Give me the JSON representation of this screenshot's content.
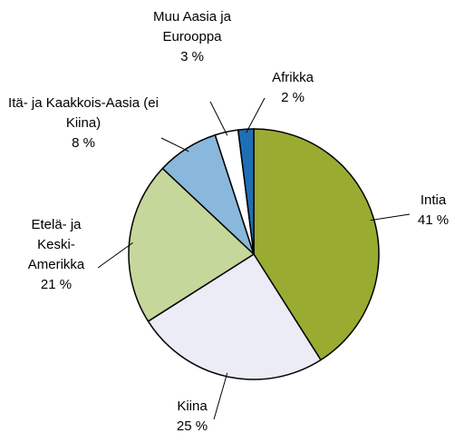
{
  "chart_data": {
    "type": "pie",
    "categories": [
      "Intia",
      "Kiina",
      "Etelä- ja Keski-Amerikka",
      "Itä- ja Kaakkois-Aasia (ei Kiina)",
      "Muu Aasia ja Eurooppa",
      "Afrikka"
    ],
    "values": [
      41,
      25,
      21,
      8,
      3,
      2
    ],
    "value_labels": [
      "41 %",
      "25 %",
      "21 %",
      "8 %",
      "3 %",
      "2 %"
    ],
    "colors": [
      "#9aab32",
      "#ebecf6",
      "#c5d79a",
      "#8ab8dc",
      "#ffffff",
      "#1f6fb4"
    ]
  }
}
